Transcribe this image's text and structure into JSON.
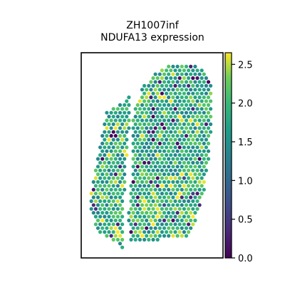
{
  "chart_data": {
    "type": "scatter",
    "title": "ZH1007inf",
    "subtitle": "NDUFA13 expression",
    "xlabel": "",
    "ylabel": "",
    "grid": false,
    "legend": "none",
    "colorbar": {
      "position": "right",
      "colormap": "viridis",
      "range": [
        0.0,
        2.65
      ],
      "ticks": [
        0.0,
        0.5,
        1.0,
        1.5,
        2.0,
        2.5
      ],
      "tick_labels": [
        "0.0",
        "0.5",
        "1.0",
        "1.5",
        "2.0",
        "2.5"
      ]
    },
    "spots": {
      "description_note": "spatial transcriptomics spots on a hexagonal grid; color = NDUFA13 expression",
      "layout": "hexagonal"
    }
  },
  "colors": {
    "frame": "#000000",
    "viridis_low": "#440154",
    "viridis_mid": "#21918c",
    "viridis_high": "#fde725"
  }
}
